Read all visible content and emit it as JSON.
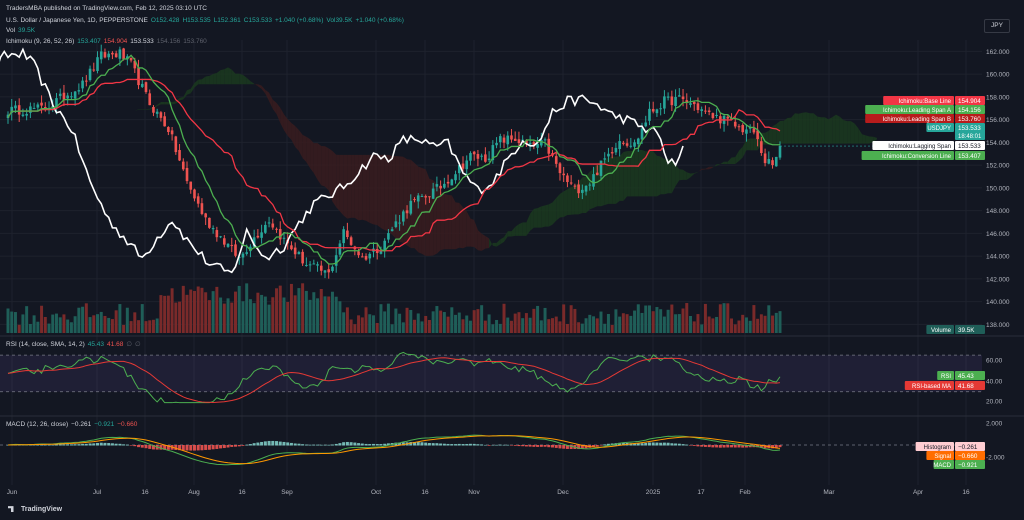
{
  "header": {
    "published": "TradersMBA published on TradingView.com, Feb 12, 2025 03:10 UTC",
    "symbol_line": [
      {
        "t": "U.S. Dollar / Japanese Yen, 1D, PEPPERSTONE",
        "c": "w"
      },
      {
        "t": "O152.428",
        "c": "g"
      },
      {
        "t": "H153.535",
        "c": "g"
      },
      {
        "t": "L152.361",
        "c": "g"
      },
      {
        "t": "C153.533",
        "c": "g"
      },
      {
        "t": "+1.040 (+0.68%)",
        "c": "g"
      },
      {
        "t": "Vol39.5K",
        "c": "g"
      },
      {
        "t": "+1.040 (+0.68%)",
        "c": "g"
      }
    ],
    "volume_line": [
      {
        "t": "Vol",
        "c": "w"
      },
      {
        "t": "39.5K",
        "c": "g"
      }
    ],
    "ichimoku_line": [
      {
        "t": "Ichimoku (9, 26, 52, 26)",
        "c": "w"
      },
      {
        "t": "153.407",
        "c": "g"
      },
      {
        "t": "154.904",
        "c": "r"
      },
      {
        "t": "153.533",
        "c": "w"
      },
      {
        "t": "154.156",
        "c": "dim"
      },
      {
        "t": "153.760",
        "c": "dim"
      }
    ],
    "rsi_line": [
      {
        "t": "RSI (14, close, SMA, 14, 2)",
        "c": "w"
      },
      {
        "t": "45.43",
        "c": "g"
      },
      {
        "t": "41.68",
        "c": "r"
      },
      {
        "t": "∅",
        "c": "dim"
      },
      {
        "t": "∅",
        "c": "dim"
      }
    ],
    "macd_line": [
      {
        "t": "MACD (12, 26, close)",
        "c": "w"
      },
      {
        "t": "−0.261",
        "c": "w"
      },
      {
        "t": "−0.921",
        "c": "g"
      },
      {
        "t": "−0.660",
        "c": "r"
      }
    ],
    "currency": "JPY"
  },
  "footer": {
    "brand": "TradingView"
  },
  "colors": {
    "bg": "#131722",
    "grid": "#1e222d",
    "up": "#26a69a",
    "down": "#ef5350",
    "base": "#f23645",
    "conversion": "#4caf50",
    "lagging": "#ffffff",
    "cloud_green": "#1b3a1f",
    "cloud_red": "#3a1c1f",
    "rsi": "#4caf50",
    "rsi_ma": "#e53935",
    "macd": "#ff9800",
    "signal": "#4caf50",
    "tag_text": "#ffffff"
  },
  "chart_data": {
    "type": "candlestick",
    "x_axis_labels": [
      "Jun",
      "Jul",
      "16",
      "Aug",
      "16",
      "Sep",
      "Oct",
      "16",
      "Nov",
      "Dec",
      "2025",
      "17",
      "Feb",
      "Mar",
      "Apr",
      "16"
    ],
    "price_axis": {
      "ticks": [
        "162.000",
        "160.000",
        "158.000",
        "156.000",
        "154.000",
        "152.000",
        "150.000",
        "148.000",
        "146.000",
        "144.000",
        "142.000",
        "140.000",
        "138.000"
      ],
      "range": [
        137.5,
        163.0
      ]
    },
    "rsi_axis": {
      "ticks": [
        "60.00",
        "40.00",
        "20.00"
      ],
      "bands": [
        70,
        30
      ]
    },
    "macd_axis": {
      "ticks": [
        "2.000",
        "-2.000"
      ]
    },
    "approx_close_path": [
      [
        0,
        156.8
      ],
      [
        10,
        157.0
      ],
      [
        20,
        159.1
      ],
      [
        25,
        161.6
      ],
      [
        30,
        161.8
      ],
      [
        33,
        160.8
      ],
      [
        38,
        157.4
      ],
      [
        43,
        155.2
      ],
      [
        48,
        150.5
      ],
      [
        53,
        147.2
      ],
      [
        58,
        145.3
      ],
      [
        62,
        143.8
      ],
      [
        66,
        145.6
      ],
      [
        70,
        147.2
      ],
      [
        74,
        145.4
      ],
      [
        80,
        143.3
      ],
      [
        86,
        142.4
      ],
      [
        90,
        146.1
      ],
      [
        95,
        143.8
      ],
      [
        100,
        144.9
      ],
      [
        104,
        146.9
      ],
      [
        108,
        148.6
      ],
      [
        112,
        149.3
      ],
      [
        116,
        150.1
      ],
      [
        120,
        151.4
      ],
      [
        124,
        152.8
      ],
      [
        128,
        152.6
      ],
      [
        132,
        154.2
      ],
      [
        136,
        154.3
      ],
      [
        140,
        153.6
      ],
      [
        144,
        153.9
      ],
      [
        148,
        151.3
      ],
      [
        152,
        149.8
      ],
      [
        156,
        150.5
      ],
      [
        160,
        152.5
      ],
      [
        164,
        154.3
      ],
      [
        168,
        153.8
      ],
      [
        172,
        156.6
      ],
      [
        176,
        157.6
      ],
      [
        180,
        157.8
      ],
      [
        184,
        157.3
      ],
      [
        188,
        156.4
      ],
      [
        192,
        156.0
      ],
      [
        196,
        155.3
      ],
      [
        200,
        154.9
      ],
      [
        203,
        152.4
      ],
      [
        205,
        151.9
      ],
      [
        207,
        153.5
      ]
    ],
    "last_bar_index": 207,
    "total_bar_slots": 262,
    "ichimoku_tags": [
      {
        "label": "Ichimoku:Base Line",
        "value": "154.904",
        "color": "#f23645"
      },
      {
        "label": "Ichimoku:Leading Span A",
        "value": "154.156",
        "color": "#4caf50"
      },
      {
        "label": "Ichimoku:Leading Span B",
        "value": "153.760",
        "color": "#b71c1c"
      },
      {
        "label": "USDJPY",
        "value": "153.533",
        "sub": "18:48:01",
        "color": "#26a69a"
      },
      {
        "label": "Ichimoku:Lagging Span",
        "value": "153.533",
        "color": "#ffffff"
      },
      {
        "label": "Ichimoku:Conversion Line",
        "value": "153.407",
        "color": "#4caf50"
      }
    ],
    "volume_tag": {
      "label": "Volume",
      "value": "39.5K"
    },
    "rsi_tags": [
      {
        "label": "RSI",
        "value": "45.43",
        "color": "#4caf50"
      },
      {
        "label": "RSI-based MA",
        "value": "41.68",
        "color": "#e53935"
      }
    ],
    "macd_tags": [
      {
        "label": "Histogram",
        "value": "−0.261",
        "color": "#ffcdd2"
      },
      {
        "label": "Signal",
        "value": "−0.660",
        "color": "#ff6d00"
      },
      {
        "label": "MACD",
        "value": "−0.921",
        "color": "#4caf50"
      }
    ]
  }
}
